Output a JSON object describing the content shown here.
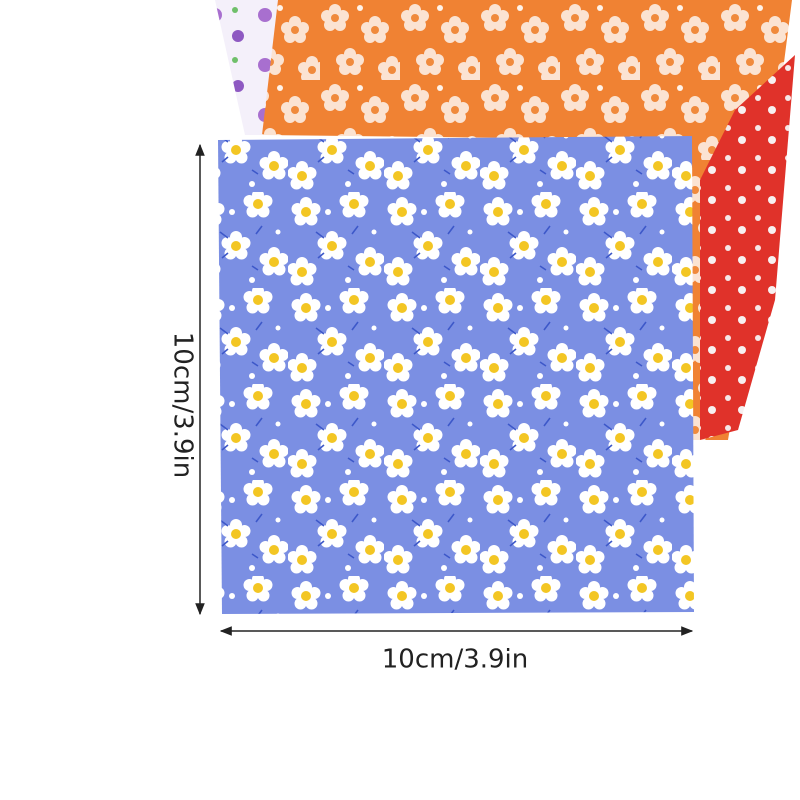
{
  "dimensions": {
    "height": "10cm/3.9in",
    "width": "10cm/3.9in"
  }
}
